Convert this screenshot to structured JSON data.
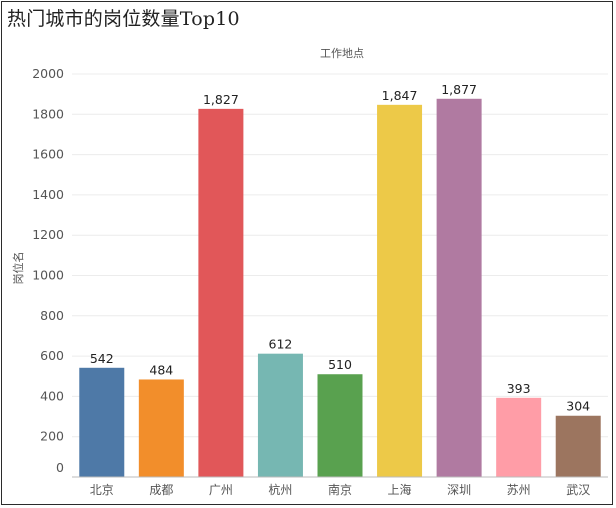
{
  "chart_data": {
    "type": "bar",
    "title": "热门城市的岗位数量Top10",
    "column_header": "工作地点",
    "ylabel": "岗位名",
    "categories": [
      "北京",
      "成都",
      "广州",
      "杭州",
      "南京",
      "上海",
      "深圳",
      "苏州",
      "武汉"
    ],
    "values": [
      542,
      484,
      1827,
      612,
      510,
      1847,
      1877,
      393,
      304
    ],
    "data_labels": [
      "542",
      "484",
      "1,827",
      "612",
      "510",
      "1,847",
      "1,877",
      "393",
      "304"
    ],
    "colors": [
      "#4e79a7",
      "#f28e2b",
      "#e15759",
      "#76b7b2",
      "#59a14f",
      "#edc948",
      "#b07aa1",
      "#ff9da7",
      "#9c755f"
    ],
    "yticks": [
      "0",
      "200",
      "400",
      "600",
      "800",
      "1000",
      "1200",
      "1400",
      "1600",
      "1800",
      "2000"
    ],
    "ylim": [
      0,
      2000
    ],
    "grid": true,
    "legend": "none"
  }
}
